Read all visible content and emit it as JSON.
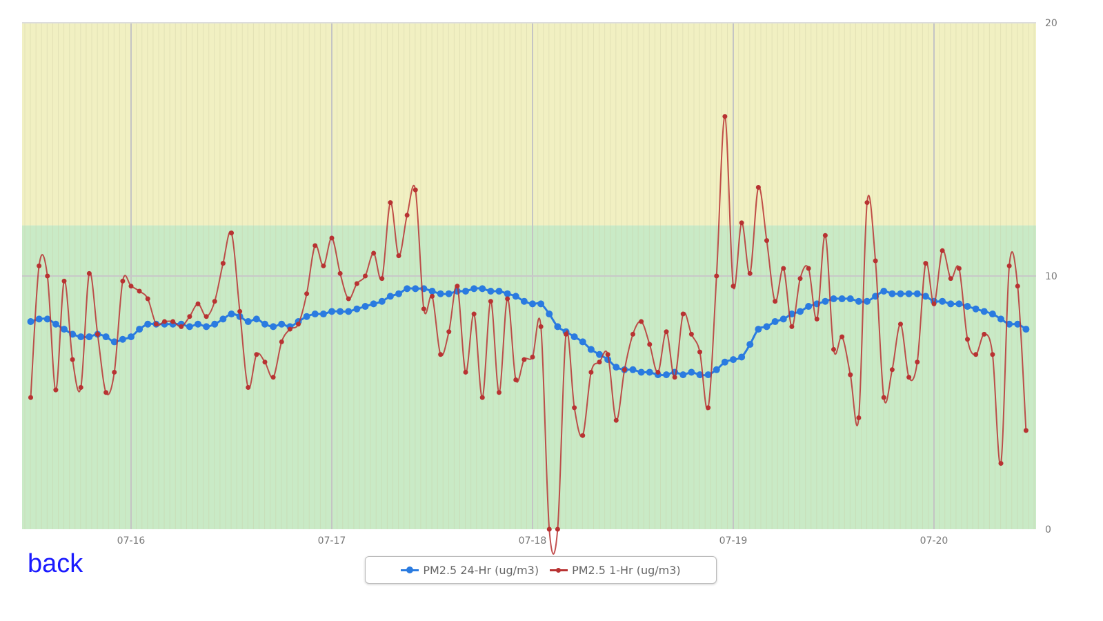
{
  "back_link": "back",
  "chart_data": {
    "type": "line",
    "x_start": "07-15 12:00",
    "x_step_hours": 1,
    "x_ticks": [
      "07-16",
      "07-17",
      "07-18",
      "07-19",
      "07-20"
    ],
    "y_ticks": [
      "0",
      "10",
      "20"
    ],
    "ylim": [
      0,
      20
    ],
    "y_axis_side": "right",
    "grid": true,
    "bands": [
      {
        "from": 0,
        "to": 12,
        "color": "#c9eac6"
      },
      {
        "from": 12,
        "to": 20,
        "color": "#f1f0c2"
      }
    ],
    "legend_position": "bottom-center",
    "series": [
      {
        "name": "PM2.5 24-Hr (ug/m3)",
        "color": "#2a7be0",
        "values": [
          8.2,
          8.3,
          8.3,
          8.1,
          7.9,
          7.7,
          7.6,
          7.6,
          7.7,
          7.6,
          7.4,
          7.5,
          7.6,
          7.9,
          8.1,
          8.1,
          8.1,
          8.1,
          8.1,
          8.0,
          8.1,
          8.0,
          8.1,
          8.3,
          8.5,
          8.4,
          8.2,
          8.3,
          8.1,
          8.0,
          8.1,
          8.0,
          8.2,
          8.4,
          8.5,
          8.5,
          8.6,
          8.6,
          8.6,
          8.7,
          8.8,
          8.9,
          9.0,
          9.2,
          9.3,
          9.5,
          9.5,
          9.5,
          9.4,
          9.3,
          9.3,
          9.4,
          9.4,
          9.5,
          9.5,
          9.4,
          9.4,
          9.3,
          9.2,
          9.0,
          8.9,
          8.9,
          8.5,
          8.0,
          7.8,
          7.6,
          7.4,
          7.1,
          6.9,
          6.7,
          6.4,
          6.3,
          6.3,
          6.2,
          6.2,
          6.1,
          6.1,
          6.2,
          6.1,
          6.2,
          6.1,
          6.1,
          6.3,
          6.6,
          6.7,
          6.8,
          7.3,
          7.9,
          8.0,
          8.2,
          8.3,
          8.5,
          8.6,
          8.8,
          8.9,
          9.0,
          9.1,
          9.1,
          9.1,
          9.0,
          9.0,
          9.2,
          9.4,
          9.3,
          9.3,
          9.3,
          9.3,
          9.2,
          9.0,
          9.0,
          8.9,
          8.9,
          8.8,
          8.7,
          8.6,
          8.5,
          8.3,
          8.1,
          8.1,
          7.9
        ]
      },
      {
        "name": "PM2.5 1-Hr (ug/m3)",
        "color": "#b83232",
        "values": [
          5.2,
          10.4,
          10.0,
          5.5,
          9.8,
          6.7,
          5.6,
          10.1,
          7.7,
          5.4,
          6.2,
          9.8,
          9.6,
          9.4,
          9.1,
          8.1,
          8.2,
          8.2,
          8.0,
          8.4,
          8.9,
          8.4,
          9.0,
          10.5,
          11.7,
          8.6,
          5.6,
          6.9,
          6.6,
          6.0,
          7.4,
          7.9,
          8.1,
          9.3,
          11.2,
          10.4,
          11.5,
          10.1,
          9.1,
          9.7,
          10.0,
          10.9,
          9.9,
          12.9,
          10.8,
          12.4,
          13.4,
          8.7,
          9.2,
          6.9,
          7.8,
          9.6,
          6.2,
          8.5,
          5.2,
          9.0,
          5.4,
          9.1,
          5.9,
          6.7,
          6.8,
          8.0,
          0,
          0,
          7.7,
          4.8,
          3.7,
          6.2,
          6.6,
          6.9,
          4.3,
          6.3,
          7.7,
          8.2,
          7.3,
          6.2,
          7.8,
          6.0,
          8.5,
          7.7,
          7.0,
          4.8,
          10.0,
          16.3,
          9.6,
          12.1,
          10.1,
          13.5,
          11.4,
          9.0,
          10.3,
          8.0,
          9.9,
          10.3,
          8.3,
          11.6,
          7.1,
          7.6,
          6.1,
          4.4,
          12.9,
          10.6,
          5.2,
          6.3,
          8.1,
          6.0,
          6.6,
          10.5,
          8.9,
          11.0,
          9.9,
          10.3,
          7.5,
          6.9,
          7.7,
          6.9,
          2.6,
          10.4,
          9.6,
          3.9
        ]
      }
    ]
  }
}
